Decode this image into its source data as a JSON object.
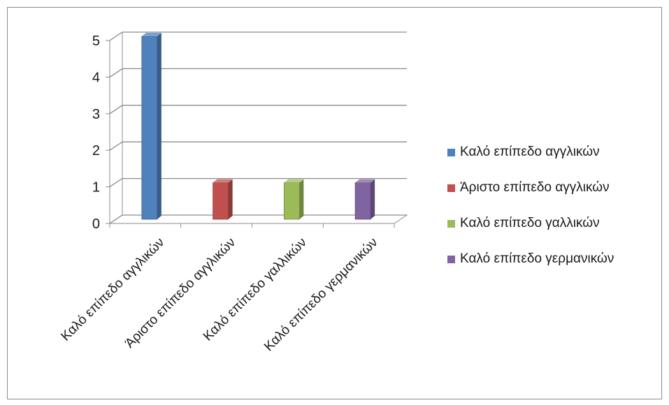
{
  "chart_data": {
    "type": "bar",
    "title": "",
    "xlabel": "",
    "ylabel": "",
    "ylim": [
      0,
      5
    ],
    "y_ticks": [
      "0",
      "1",
      "2",
      "3",
      "4",
      "5"
    ],
    "categories": [
      "Καλό επίπεδο αγγλικών",
      "Άριστο επίπεδο αγγλικών",
      "Καλό επίπεδο γαλλικών",
      "Καλό επίπεδο γερμανικών"
    ],
    "values": [
      5,
      1,
      1,
      1
    ],
    "colors": [
      "#4f81bd",
      "#c0504d",
      "#9bbb59",
      "#8064a2"
    ],
    "grid": true,
    "legend_position": "right",
    "style": "3d-column"
  },
  "legend": {
    "items": [
      {
        "label": "Καλό επίπεδο αγγλικών",
        "color": "#4f81bd"
      },
      {
        "label": "Άριστο επίπεδο αγγλικών",
        "color": "#c0504d"
      },
      {
        "label": "Καλό επίπεδο γαλλικών",
        "color": "#9bbb59"
      },
      {
        "label": "Καλό επίπεδο γερμανικών",
        "color": "#8064a2"
      }
    ]
  }
}
